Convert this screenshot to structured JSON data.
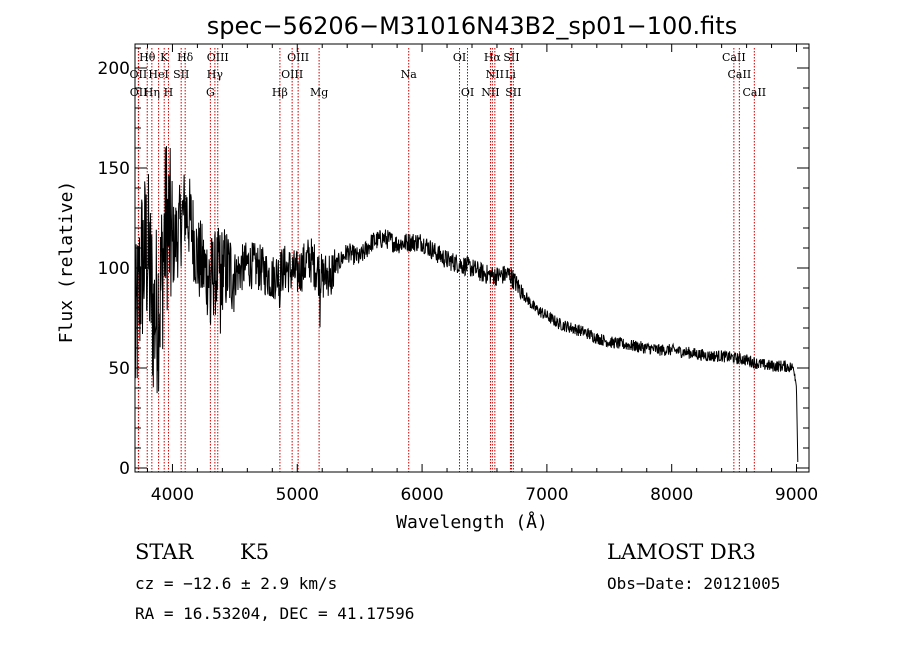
{
  "chart_data": {
    "type": "line",
    "title": "spec−56206−M31016N43B2_sp01−100.fits",
    "xlabel": "Wavelength (Å)",
    "ylabel": "Flux (relative)",
    "xlim": [
      3700,
      9100
    ],
    "ylim": [
      -2,
      212
    ],
    "x_ticks": [
      4000,
      5000,
      6000,
      7000,
      8000,
      9000
    ],
    "y_ticks": [
      0,
      50,
      100,
      150,
      200
    ],
    "line_color": "#000000",
    "marker_color": "#cc0000",
    "spectrum_anchors": [
      [
        3700,
        60
      ],
      [
        3750,
        100
      ],
      [
        3800,
        110
      ],
      [
        3850,
        75
      ],
      [
        3900,
        85
      ],
      [
        3950,
        125
      ],
      [
        4000,
        110
      ],
      [
        4050,
        118
      ],
      [
        4100,
        130
      ],
      [
        4150,
        122
      ],
      [
        4200,
        105
      ],
      [
        4300,
        95
      ],
      [
        4400,
        100
      ],
      [
        4500,
        97
      ],
      [
        4600,
        102
      ],
      [
        4700,
        100
      ],
      [
        4800,
        95
      ],
      [
        4900,
        100
      ],
      [
        5000,
        97
      ],
      [
        5100,
        105
      ],
      [
        5200,
        95
      ],
      [
        5300,
        100
      ],
      [
        5400,
        108
      ],
      [
        5500,
        105
      ],
      [
        5600,
        113
      ],
      [
        5700,
        115
      ],
      [
        5800,
        112
      ],
      [
        5900,
        113
      ],
      [
        6000,
        113
      ],
      [
        6100,
        108
      ],
      [
        6200,
        104
      ],
      [
        6300,
        102
      ],
      [
        6400,
        100
      ],
      [
        6500,
        97
      ],
      [
        6600,
        96
      ],
      [
        6700,
        97
      ],
      [
        6800,
        88
      ],
      [
        6900,
        80
      ],
      [
        7000,
        76
      ],
      [
        7100,
        72
      ],
      [
        7200,
        70
      ],
      [
        7300,
        68
      ],
      [
        7400,
        65
      ],
      [
        7500,
        63
      ],
      [
        7600,
        62
      ],
      [
        7700,
        61
      ],
      [
        7800,
        60
      ],
      [
        7900,
        59
      ],
      [
        8000,
        59
      ],
      [
        8100,
        58
      ],
      [
        8200,
        57
      ],
      [
        8300,
        56
      ],
      [
        8400,
        56
      ],
      [
        8500,
        55
      ],
      [
        8600,
        54
      ],
      [
        8700,
        52
      ],
      [
        8800,
        51
      ],
      [
        8900,
        51
      ],
      [
        8980,
        50
      ],
      [
        9000,
        40
      ],
      [
        9010,
        3
      ]
    ],
    "noise": [
      {
        "from": 3700,
        "to": 4000,
        "amp": 45
      },
      {
        "from": 4000,
        "to": 4500,
        "amp": 22
      },
      {
        "from": 4500,
        "to": 5300,
        "amp": 12
      },
      {
        "from": 5300,
        "to": 6800,
        "amp": 5
      },
      {
        "from": 6800,
        "to": 9000,
        "amp": 3
      }
    ],
    "dips": [
      {
        "x": 4305,
        "depth": 35
      },
      {
        "x": 4385,
        "depth": 30
      },
      {
        "x": 4861,
        "depth": 35
      },
      {
        "x": 5183,
        "depth": 42
      },
      {
        "x": 5270,
        "depth": 18
      }
    ],
    "line_markers": [
      {
        "label": "Hθ",
        "x": 3798,
        "row": 0
      },
      {
        "label": "K",
        "x": 3934,
        "row": 0
      },
      {
        "label": "Hδ",
        "x": 4102,
        "row": 0
      },
      {
        "label": "OIII",
        "x": 4363,
        "row": 0
      },
      {
        "label": "OIII",
        "x": 5007,
        "row": 0
      },
      {
        "label": "OI",
        "x": 6300,
        "row": 0
      },
      {
        "label": "Hα",
        "x": 6563,
        "row": 0
      },
      {
        "label": "SII",
        "x": 6716,
        "row": 0
      },
      {
        "label": "CaII",
        "x": 8498,
        "row": 0
      },
      {
        "label": "OII",
        "x": 3727,
        "row": 1
      },
      {
        "label": "HeI",
        "x": 3889,
        "row": 1
      },
      {
        "label": "SII",
        "x": 4070,
        "row": 1
      },
      {
        "label": "Hγ",
        "x": 4340,
        "row": 1
      },
      {
        "label": "OIII",
        "x": 4959,
        "row": 1
      },
      {
        "label": "Na",
        "x": 5893,
        "row": 1
      },
      {
        "label": "NII",
        "x": 6583,
        "row": 1
      },
      {
        "label": "Li",
        "x": 6708,
        "row": 1
      },
      {
        "label": "CaII",
        "x": 8542,
        "row": 1
      },
      {
        "label": "OII",
        "x": 3729,
        "row": 2
      },
      {
        "label": "Hη",
        "x": 3835,
        "row": 2
      },
      {
        "label": "H",
        "x": 3968,
        "row": 2
      },
      {
        "label": "G",
        "x": 4304,
        "row": 2
      },
      {
        "label": "Hβ",
        "x": 4861,
        "row": 2
      },
      {
        "label": "Mg",
        "x": 5175,
        "row": 2
      },
      {
        "label": "OI",
        "x": 6364,
        "row": 2
      },
      {
        "label": "NII",
        "x": 6548,
        "row": 2
      },
      {
        "label": "SII",
        "x": 6731,
        "row": 2
      },
      {
        "label": "CaII",
        "x": 8662,
        "row": 2
      }
    ]
  },
  "info": {
    "object_class": "STAR",
    "subclass": "K5",
    "redshift": "cz = −12.6 ± 2.9 km/s",
    "coords": "RA =  16.53204, DEC =  41.17596",
    "survey": "LAMOST DR3",
    "obs_date": "Obs−Date: 20121005"
  }
}
